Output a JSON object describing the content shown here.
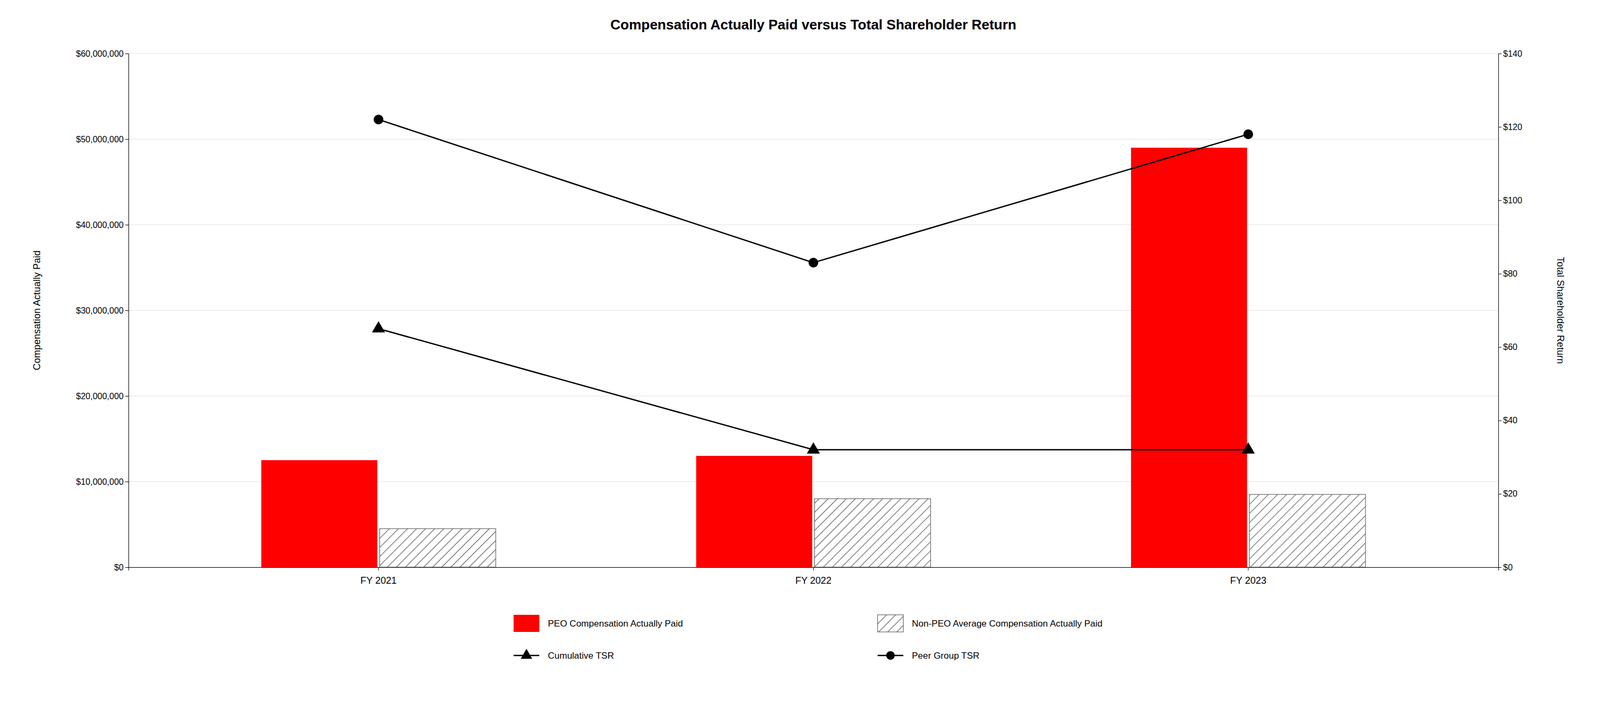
{
  "chart_data": {
    "type": "bar",
    "title": "Compensation Actually Paid versus Total Shareholder Return",
    "categories": [
      "FY 2021",
      "FY 2022",
      "FY 2023"
    ],
    "series": [
      {
        "name": "PEO Compensation Actually Paid",
        "type": "bar",
        "color": "#FF0000",
        "values": [
          12500000,
          13000000,
          49000000
        ]
      },
      {
        "name": "Non-PEO Average Compensation Actually Paid",
        "type": "bar",
        "color": "#FFFFFF",
        "values": [
          4500000,
          8000000,
          8500000
        ]
      },
      {
        "name": "Cumulative TSR",
        "type": "line",
        "axis": "y2",
        "color": "#000000",
        "marker": "triangle",
        "values": [
          65,
          32,
          32
        ]
      },
      {
        "name": "Peer Group TSR",
        "type": "line",
        "axis": "y2",
        "color": "#000000",
        "marker": "circle",
        "values": [
          122,
          83,
          118
        ]
      }
    ],
    "ylabel": "Compensation Actually Paid",
    "y2label": "Total Shareholder Return",
    "ylim": [
      0,
      60000000
    ],
    "yticks": [
      {
        "value": 0,
        "label": "$0"
      },
      {
        "value": 10000000,
        "label": "$10,000,000"
      },
      {
        "value": 20000000,
        "label": "$20,000,000"
      },
      {
        "value": 30000000,
        "label": "$30,000,000"
      },
      {
        "value": 40000000,
        "label": "$40,000,000"
      },
      {
        "value": 50000000,
        "label": "$50,000,000"
      },
      {
        "value": 60000000,
        "label": "$60,000,000"
      }
    ],
    "y2lim": [
      0,
      140
    ],
    "y2ticks": [
      {
        "value": 0,
        "label": "$0"
      },
      {
        "value": 20,
        "label": "$20"
      },
      {
        "value": 40,
        "label": "$40"
      },
      {
        "value": 60,
        "label": "$60"
      },
      {
        "value": 80,
        "label": "$80"
      },
      {
        "value": 100,
        "label": "$100"
      },
      {
        "value": 120,
        "label": "$120"
      },
      {
        "value": 140,
        "label": "$140"
      }
    ],
    "grid": true,
    "legend": "bottom"
  }
}
